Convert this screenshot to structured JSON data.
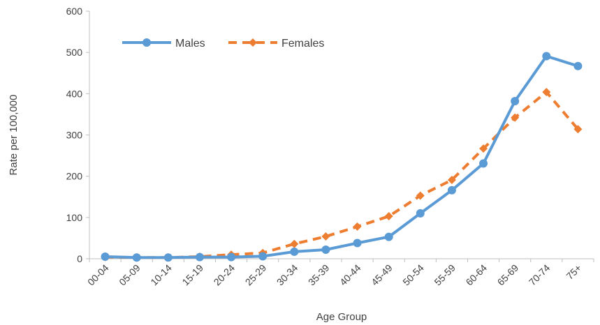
{
  "chart_data": {
    "type": "line",
    "title": "",
    "xlabel": "Age Group",
    "ylabel": "Rate per 100,000",
    "ylim": [
      0,
      600
    ],
    "yticks": [
      0,
      100,
      200,
      300,
      400,
      500,
      600
    ],
    "categories": [
      "00-04",
      "05-09",
      "10-14",
      "15-19",
      "20-24",
      "25-29",
      "30-34",
      "35-39",
      "40-44",
      "45-49",
      "50-54",
      "55-59",
      "60-64",
      "65-69",
      "70-74",
      "75+"
    ],
    "series": [
      {
        "name": "Males",
        "color": "#5B9BD5",
        "line_style": "solid",
        "marker": "circle",
        "values": [
          5,
          3,
          3,
          4,
          4,
          6,
          17,
          22,
          38,
          53,
          110,
          166,
          231,
          382,
          491,
          467
        ]
      },
      {
        "name": "Females",
        "color": "#ED7D31",
        "line_style": "dashed",
        "marker": "diamond",
        "values": [
          4,
          3,
          3,
          5,
          10,
          14,
          36,
          54,
          78,
          103,
          153,
          191,
          267,
          342,
          404,
          314
        ]
      }
    ],
    "grid": false,
    "legend": "top-left"
  }
}
